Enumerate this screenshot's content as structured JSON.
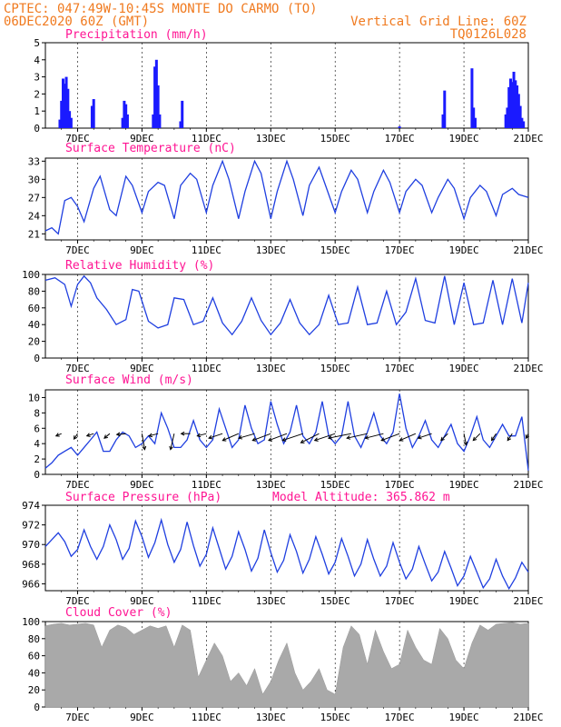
{
  "header": {
    "left_line1": "CPTEC:  047:49W-10:45S  MONTE DO CARMO (TO)",
    "left_line2": "06DEC2020 60Z (GMT)",
    "right_line2": "Vertical Grid Line: 60Z",
    "right_line3": "TQ0126L028"
  },
  "x_ticks": [
    "7DEC",
    "9DEC",
    "11DEC",
    "13DEC",
    "15DEC",
    "17DEC",
    "19DEC",
    "21DEC"
  ],
  "colors": {
    "header": "#f07a1f",
    "title": "#ff1493",
    "series": "#1f3fe0",
    "bars": "#1a1aff",
    "cloud": "#a9a9a9",
    "arrows": "#000000"
  },
  "chart_data": [
    {
      "type": "bar",
      "title": "Precipitation (mm/h)",
      "ylim": [
        0,
        5
      ],
      "yticks": [
        "0",
        "1",
        "2",
        "3",
        "4",
        "5"
      ],
      "x_start_day": 6.0,
      "x_end_day": 21.0,
      "x": [
        6.45,
        6.5,
        6.55,
        6.6,
        6.65,
        6.7,
        6.75,
        6.8,
        7.45,
        7.5,
        8.4,
        8.45,
        8.5,
        8.55,
        9.35,
        9.4,
        9.45,
        9.5,
        9.55,
        10.2,
        10.25,
        17.0,
        18.35,
        18.4,
        19.25,
        19.3,
        19.35,
        20.3,
        20.35,
        20.4,
        20.45,
        20.5,
        20.55,
        20.6,
        20.65,
        20.7,
        20.75,
        20.8,
        20.85
      ],
      "values": [
        0.5,
        1.6,
        2.9,
        2.6,
        3.0,
        2.3,
        1.0,
        0.6,
        1.3,
        1.7,
        0.6,
        1.6,
        1.4,
        0.8,
        0.8,
        3.6,
        4.0,
        2.5,
        0.8,
        0.4,
        1.6,
        0.1,
        0.8,
        2.2,
        3.5,
        1.2,
        0.6,
        0.8,
        1.2,
        2.4,
        2.9,
        2.7,
        3.3,
        2.8,
        2.5,
        2.0,
        1.3,
        0.6,
        0.4
      ]
    },
    {
      "type": "line",
      "title": "Surface Temperature (nC)",
      "ylim": [
        20,
        33.5
      ],
      "yticks": [
        "21",
        "24",
        "27",
        "30",
        "33"
      ],
      "x": [
        6.0,
        6.2,
        6.4,
        6.6,
        6.8,
        7.0,
        7.2,
        7.5,
        7.7,
        8.0,
        8.2,
        8.5,
        8.7,
        9.0,
        9.2,
        9.5,
        9.7,
        10.0,
        10.2,
        10.5,
        10.7,
        11.0,
        11.2,
        11.5,
        11.7,
        12.0,
        12.2,
        12.5,
        12.7,
        13.0,
        13.2,
        13.5,
        13.7,
        14.0,
        14.2,
        14.5,
        14.7,
        15.0,
        15.2,
        15.5,
        15.7,
        16.0,
        16.2,
        16.5,
        16.7,
        17.0,
        17.2,
        17.5,
        17.7,
        18.0,
        18.2,
        18.5,
        18.7,
        19.0,
        19.2,
        19.5,
        19.7,
        20.0,
        20.2,
        20.5,
        20.7,
        21.0
      ],
      "values": [
        21.5,
        22,
        21,
        26.5,
        27,
        25.5,
        23,
        28.5,
        30.5,
        25,
        24,
        30.5,
        29,
        24.5,
        28,
        29.5,
        29,
        23.5,
        29,
        31,
        30,
        24.5,
        29,
        33,
        30,
        23.5,
        28,
        33,
        31,
        23.5,
        28,
        33,
        30,
        24,
        29,
        32,
        29,
        24.5,
        28,
        31.5,
        30,
        24.5,
        28,
        31.5,
        29.5,
        24.5,
        28,
        30,
        29,
        24.5,
        27,
        30,
        28.5,
        23.5,
        27,
        29,
        28,
        24,
        27.5,
        28.5,
        27.5,
        27
      ]
    },
    {
      "type": "line",
      "title": "Relative Humidity (%)",
      "ylim": [
        0,
        100
      ],
      "yticks": [
        "0",
        "20",
        "40",
        "60",
        "80",
        "100"
      ],
      "x": [
        6.0,
        6.3,
        6.6,
        6.8,
        7.0,
        7.2,
        7.4,
        7.6,
        7.9,
        8.2,
        8.5,
        8.7,
        8.9,
        9.2,
        9.5,
        9.8,
        10.0,
        10.3,
        10.6,
        10.9,
        11.2,
        11.5,
        11.8,
        12.1,
        12.4,
        12.7,
        13.0,
        13.3,
        13.6,
        13.9,
        14.2,
        14.5,
        14.8,
        15.1,
        15.4,
        15.7,
        16.0,
        16.3,
        16.6,
        16.9,
        17.2,
        17.5,
        17.8,
        18.1,
        18.4,
        18.7,
        19.0,
        19.3,
        19.6,
        19.9,
        20.2,
        20.5,
        20.8,
        21.0
      ],
      "values": [
        93,
        96,
        88,
        62,
        88,
        98,
        90,
        72,
        58,
        40,
        46,
        82,
        80,
        44,
        36,
        40,
        72,
        70,
        40,
        44,
        72,
        42,
        28,
        44,
        72,
        45,
        28,
        42,
        70,
        42,
        28,
        40,
        75,
        40,
        42,
        85,
        40,
        42,
        80,
        40,
        55,
        95,
        45,
        42,
        98,
        40,
        90,
        40,
        42,
        93,
        40,
        95,
        42,
        90
      ]
    },
    {
      "type": "line",
      "title": "Surface Wind (m/s)",
      "ylim": [
        0,
        11
      ],
      "yticks": [
        "0",
        "2",
        "4",
        "6",
        "8",
        "10"
      ],
      "x": [
        6.0,
        6.2,
        6.4,
        6.6,
        6.8,
        7.0,
        7.2,
        7.4,
        7.6,
        7.8,
        8.0,
        8.2,
        8.4,
        8.6,
        8.8,
        9.0,
        9.2,
        9.4,
        9.6,
        9.8,
        10.0,
        10.2,
        10.4,
        10.6,
        10.8,
        11.0,
        11.2,
        11.4,
        11.6,
        11.8,
        12.0,
        12.2,
        12.4,
        12.6,
        12.8,
        13.0,
        13.2,
        13.4,
        13.6,
        13.8,
        14.0,
        14.2,
        14.4,
        14.6,
        14.8,
        15.0,
        15.2,
        15.4,
        15.6,
        15.8,
        16.0,
        16.2,
        16.4,
        16.6,
        16.8,
        17.0,
        17.2,
        17.4,
        17.6,
        17.8,
        18.0,
        18.2,
        18.4,
        18.6,
        18.8,
        19.0,
        19.2,
        19.4,
        19.6,
        19.8,
        20.0,
        20.2,
        20.4,
        20.6,
        20.8,
        21.0
      ],
      "values": [
        0.8,
        1.5,
        2.5,
        3.0,
        3.5,
        2.5,
        3.5,
        4.5,
        5.5,
        3.0,
        3.0,
        4.5,
        5.5,
        5.0,
        3.5,
        4.0,
        5.0,
        4.0,
        8.0,
        6.0,
        3.5,
        3.5,
        4.5,
        7.0,
        4.5,
        3.5,
        4.5,
        8.5,
        6.0,
        3.5,
        4.5,
        9.0,
        6.0,
        4.0,
        4.5,
        9.5,
        6.5,
        4.0,
        5.5,
        9.0,
        5.0,
        4.0,
        5.5,
        9.5,
        5.0,
        4.0,
        5.0,
        9.5,
        5.0,
        3.5,
        5.5,
        8.0,
        5.0,
        4.0,
        5.5,
        10.5,
        6.0,
        3.5,
        5.0,
        7.0,
        4.5,
        3.5,
        5.0,
        6.5,
        4.0,
        3.0,
        5.0,
        7.5,
        4.5,
        3.5,
        5.0,
        6.5,
        5.0,
        5.0,
        7.5,
        0.5
      ],
      "arrow_days": [
        6.5,
        7.0,
        7.5,
        8.0,
        8.5,
        9.0,
        9.5,
        10.0,
        10.5,
        11.0,
        11.5,
        12.0,
        12.5,
        13.0,
        13.5,
        14.0,
        14.5,
        15.0,
        15.5,
        16.0,
        16.5,
        17.0,
        17.5,
        18.0,
        18.5,
        19.0,
        19.5,
        20.0,
        20.5,
        21.0
      ],
      "arrow_u": [
        -1.2,
        -0.8,
        -1.5,
        -1.2,
        -2,
        0.6,
        -2,
        -0.8,
        -2,
        -2,
        -3,
        -3.5,
        -3.5,
        -4,
        -4,
        -4.5,
        -4,
        -4.5,
        -5,
        -4.5,
        -4,
        -4,
        -3.5,
        -3,
        -1.5,
        0.5,
        -1.5,
        -1,
        -1,
        -0.5
      ],
      "arrow_v": [
        -0.5,
        -1.2,
        -0.5,
        -1,
        -0.2,
        -3.5,
        -0.5,
        -3.5,
        0,
        -0.5,
        -1,
        -1.5,
        -1,
        -1.5,
        -1.5,
        -1.5,
        -2,
        -1.5,
        -1,
        -1,
        -1,
        -1.5,
        -1.5,
        -1,
        -1.5,
        -2.5,
        -1.5,
        -1.5,
        -1.5,
        -1
      ]
    },
    {
      "type": "line",
      "title": "Surface Pressure (hPa)",
      "annotation": "Model Altitude: 365.862 m",
      "ylim": [
        965.3,
        974
      ],
      "yticks": [
        "966",
        "968",
        "970",
        "972",
        "974"
      ],
      "x": [
        6.0,
        6.2,
        6.4,
        6.6,
        6.8,
        7.0,
        7.2,
        7.4,
        7.6,
        7.8,
        8.0,
        8.2,
        8.4,
        8.6,
        8.8,
        9.0,
        9.2,
        9.4,
        9.6,
        9.8,
        10.0,
        10.2,
        10.4,
        10.6,
        10.8,
        11.0,
        11.2,
        11.4,
        11.6,
        11.8,
        12.0,
        12.2,
        12.4,
        12.6,
        12.8,
        13.0,
        13.2,
        13.4,
        13.6,
        13.8,
        14.0,
        14.2,
        14.4,
        14.6,
        14.8,
        15.0,
        15.2,
        15.4,
        15.6,
        15.8,
        16.0,
        16.2,
        16.4,
        16.6,
        16.8,
        17.0,
        17.2,
        17.4,
        17.6,
        17.8,
        18.0,
        18.2,
        18.4,
        18.6,
        18.8,
        19.0,
        19.2,
        19.4,
        19.6,
        19.8,
        20.0,
        20.2,
        20.4,
        20.6,
        20.8,
        21.0
      ],
      "values": [
        969.8,
        970.5,
        971.2,
        970.3,
        968.8,
        969.5,
        971.5,
        969.8,
        968.5,
        969.8,
        972.0,
        970.5,
        968.5,
        969.6,
        972.4,
        970.8,
        968.7,
        970.2,
        972.5,
        970.0,
        968.2,
        969.5,
        972.3,
        969.9,
        967.8,
        969.0,
        971.7,
        969.6,
        967.5,
        968.8,
        971.3,
        969.5,
        967.3,
        968.6,
        971.5,
        969.2,
        967.2,
        968.4,
        971.0,
        969.3,
        967.1,
        968.5,
        970.8,
        969.0,
        967.0,
        968.2,
        970.6,
        968.8,
        966.8,
        968.0,
        970.5,
        968.5,
        966.8,
        967.8,
        970.2,
        968.2,
        966.5,
        967.5,
        969.8,
        968.0,
        966.3,
        967.2,
        969.3,
        967.6,
        965.8,
        966.8,
        968.8,
        967.2,
        965.6,
        966.5,
        968.5,
        966.8,
        965.5,
        966.6,
        968.2,
        967.2
      ]
    },
    {
      "type": "area",
      "title": "Cloud Cover (%)",
      "ylim": [
        0,
        100
      ],
      "yticks": [
        "0",
        "20",
        "40",
        "60",
        "80",
        "100"
      ],
      "x": [
        6.0,
        6.25,
        6.5,
        6.75,
        7.0,
        7.25,
        7.5,
        7.75,
        8.0,
        8.25,
        8.5,
        8.75,
        9.0,
        9.25,
        9.5,
        9.75,
        10.0,
        10.25,
        10.5,
        10.75,
        11.0,
        11.25,
        11.5,
        11.75,
        12.0,
        12.25,
        12.5,
        12.75,
        13.0,
        13.25,
        13.5,
        13.75,
        14.0,
        14.25,
        14.5,
        14.75,
        15.0,
        15.25,
        15.5,
        15.75,
        16.0,
        16.25,
        16.5,
        16.75,
        17.0,
        17.25,
        17.5,
        17.75,
        18.0,
        18.25,
        18.5,
        18.75,
        19.0,
        19.25,
        19.5,
        19.75,
        20.0,
        20.25,
        20.5,
        20.75,
        21.0
      ],
      "values": [
        95,
        97,
        98,
        96,
        97,
        98,
        96,
        70,
        90,
        96,
        93,
        85,
        90,
        95,
        92,
        95,
        70,
        96,
        90,
        35,
        55,
        75,
        60,
        30,
        40,
        25,
        45,
        15,
        30,
        55,
        75,
        40,
        20,
        30,
        45,
        20,
        15,
        70,
        95,
        85,
        50,
        90,
        65,
        45,
        50,
        90,
        70,
        55,
        50,
        92,
        80,
        55,
        45,
        75,
        96,
        90,
        97,
        98,
        99,
        97,
        98
      ]
    }
  ]
}
